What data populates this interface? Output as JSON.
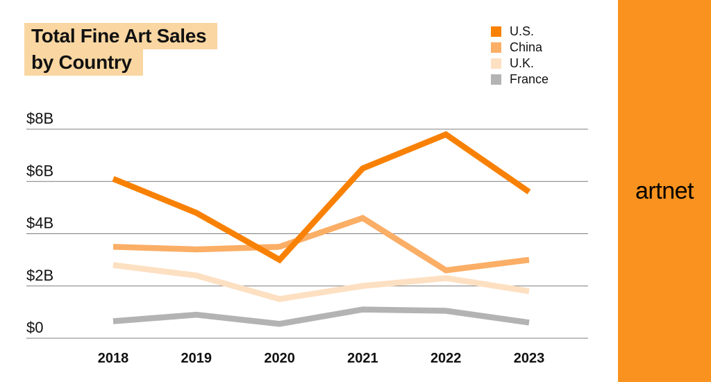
{
  "title": {
    "line1": "Total Fine Art Sales",
    "line2": "by Country"
  },
  "brand": {
    "logo_text": "artnet"
  },
  "colors": {
    "us_orange": "#F88104",
    "china_orange": "#FBAE66",
    "uk_peach": "#FDE0C2",
    "france_gray": "#B3B3B3",
    "banner_orange": "#F9921E",
    "title_highlight": "#FAD7A2",
    "gridline_gray": "#7C7C7C",
    "text_black": "#111111"
  },
  "chart_data": {
    "type": "line",
    "title": "Total Fine Art Sales by Country",
    "x": [
      "2018",
      "2019",
      "2020",
      "2021",
      "2022",
      "2023"
    ],
    "series": [
      {
        "name": "U.S.",
        "color": "#F88104",
        "values": [
          6.1,
          4.8,
          3.0,
          6.5,
          7.8,
          5.6
        ]
      },
      {
        "name": "China",
        "color": "#FBAE66",
        "values": [
          3.5,
          3.4,
          3.5,
          4.6,
          2.6,
          3.0
        ]
      },
      {
        "name": "U.K.",
        "color": "#FDE0C2",
        "values": [
          2.8,
          2.4,
          1.5,
          2.0,
          2.3,
          1.8
        ]
      },
      {
        "name": "France",
        "color": "#B3B3B3",
        "values": [
          0.65,
          0.9,
          0.55,
          1.1,
          1.05,
          0.6
        ]
      }
    ],
    "y_ticks": [
      {
        "value": 0,
        "label": "$0"
      },
      {
        "value": 2,
        "label": "$2B"
      },
      {
        "value": 4,
        "label": "$4B"
      },
      {
        "value": 6,
        "label": "$6B"
      },
      {
        "value": 8,
        "label": "$8B"
      }
    ],
    "ylim": [
      0,
      8.6
    ],
    "xlabel": "",
    "ylabel": "",
    "grid": true,
    "legend_position": "top-right",
    "units": "billions USD"
  }
}
